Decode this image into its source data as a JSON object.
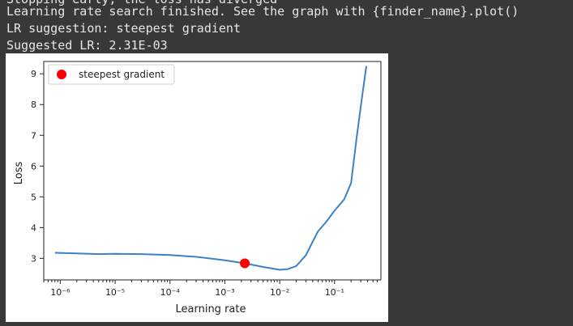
{
  "output": {
    "lines": [
      "Stopping early, the loss has diverged",
      "Learning rate search finished. See the graph with {finder_name}.plot()",
      "LR suggestion: steepest gradient",
      "Suggested LR: 2.31E-03"
    ]
  },
  "colors": {
    "line": "#3b82c4",
    "marker": "#ff0000",
    "background": "#383838",
    "text": "#e6e6e6"
  },
  "chart_data": {
    "type": "line",
    "xlabel": "Learning rate",
    "ylabel": "Loss",
    "xscale": "log",
    "xlim": [
      5e-07,
      0.7
    ],
    "ylim": [
      2.3,
      9.4
    ],
    "x_ticks": [
      {
        "value": 1e-06,
        "label": "10⁻⁶"
      },
      {
        "value": 1e-05,
        "label": "10⁻⁵"
      },
      {
        "value": 0.0001,
        "label": "10⁻⁴"
      },
      {
        "value": 0.001,
        "label": "10⁻³"
      },
      {
        "value": 0.01,
        "label": "10⁻²"
      },
      {
        "value": 0.1,
        "label": "10⁻¹"
      }
    ],
    "y_ticks": [
      {
        "value": 3,
        "label": "3"
      },
      {
        "value": 4,
        "label": "4"
      },
      {
        "value": 5,
        "label": "5"
      },
      {
        "value": 6,
        "label": "6"
      },
      {
        "value": 7,
        "label": "7"
      },
      {
        "value": 8,
        "label": "8"
      },
      {
        "value": 9,
        "label": "9"
      }
    ],
    "series": [
      {
        "x": [
          8e-07,
          2e-06,
          5e-06,
          1e-05,
          3e-05,
          0.0001,
          0.0003,
          0.001,
          0.0023,
          0.005,
          0.01,
          0.014,
          0.02,
          0.03,
          0.04,
          0.05,
          0.07,
          0.1,
          0.15,
          0.2,
          0.25,
          0.32,
          0.38
        ],
        "y": [
          3.18,
          3.16,
          3.14,
          3.15,
          3.14,
          3.11,
          3.05,
          2.94,
          2.84,
          2.72,
          2.63,
          2.65,
          2.75,
          3.1,
          3.55,
          3.88,
          4.18,
          4.55,
          4.92,
          5.45,
          6.85,
          8.3,
          9.25
        ]
      }
    ],
    "marker": {
      "x": 0.00231,
      "y": 2.84
    },
    "legend": {
      "label": "steepest gradient",
      "position": "top-left"
    },
    "grid": false
  }
}
